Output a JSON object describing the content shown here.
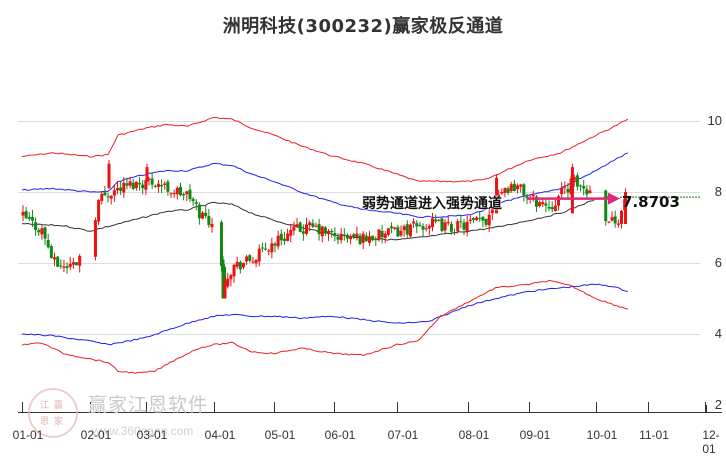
{
  "title": "洲明科技(300232)赢家极反通道",
  "annotation": "弱势通道进入强势通道",
  "last_price_label": "7.8703",
  "watermark": {
    "brand": "赢家江恩软件",
    "url": "www.360gann.com",
    "seal": [
      "江",
      "赢",
      "恩",
      "家"
    ]
  },
  "colors": {
    "up": "#ee1111",
    "down": "#118811",
    "outer": "#ee2222",
    "inner": "#2222ee",
    "mid": "#333333",
    "arrow": "#e0287a",
    "ref": "#117711",
    "grid": "#dddddd"
  },
  "chart_data": {
    "type": "candlestick",
    "title": "洲明科技(300232)赢家极反通道",
    "xlabel": "",
    "ylabel": "",
    "ylim": [
      2,
      10.5
    ],
    "yticks": [
      2,
      4,
      6,
      8,
      10
    ],
    "xticks": [
      "01-01",
      "02-01",
      "03-01",
      "04-01",
      "05-01",
      "06-01",
      "07-01",
      "08-01",
      "09-01",
      "10-01",
      "11-01",
      "12-01"
    ],
    "grid": true,
    "legend": null,
    "reference_line": {
      "value": 7.87,
      "label": "7.8703",
      "style": "dotted-green"
    },
    "annotation": {
      "text": "弱势通道进入强势通道",
      "arrow_to": 7.87
    },
    "series": [
      {
        "name": "upper-outer-band",
        "color": "#ee2222",
        "points": [
          [
            "01-01",
            9.0
          ],
          [
            "01-15",
            9.1
          ],
          [
            "02-01",
            9.0
          ],
          [
            "02-10",
            9.05
          ],
          [
            "02-15",
            9.6
          ],
          [
            "03-01",
            9.8
          ],
          [
            "03-10",
            9.9
          ],
          [
            "03-20",
            9.85
          ],
          [
            "04-01",
            10.1
          ],
          [
            "04-10",
            10.05
          ],
          [
            "04-20",
            9.8
          ],
          [
            "05-01",
            9.6
          ],
          [
            "05-15",
            9.3
          ],
          [
            "06-01",
            9.0
          ],
          [
            "06-15",
            8.8
          ],
          [
            "07-01",
            8.5
          ],
          [
            "07-10",
            8.3
          ],
          [
            "07-20",
            8.3
          ],
          [
            "08-01",
            8.3
          ],
          [
            "08-10",
            8.35
          ],
          [
            "08-20",
            8.6
          ],
          [
            "09-01",
            8.9
          ],
          [
            "09-15",
            9.1
          ],
          [
            "10-01",
            9.6
          ],
          [
            "10-10",
            9.8
          ],
          [
            "10-20",
            10.05
          ]
        ]
      },
      {
        "name": "upper-inner-band",
        "color": "#2222ee",
        "points": [
          [
            "01-01",
            8.05
          ],
          [
            "01-15",
            8.1
          ],
          [
            "02-01",
            8.0
          ],
          [
            "02-10",
            8.0
          ],
          [
            "02-15",
            8.3
          ],
          [
            "03-01",
            8.5
          ],
          [
            "03-10",
            8.6
          ],
          [
            "03-20",
            8.6
          ],
          [
            "04-01",
            8.8
          ],
          [
            "04-10",
            8.75
          ],
          [
            "04-20",
            8.5
          ],
          [
            "05-01",
            8.3
          ],
          [
            "05-15",
            8.0
          ],
          [
            "06-01",
            7.7
          ],
          [
            "06-15",
            7.5
          ],
          [
            "07-01",
            7.4
          ],
          [
            "07-10",
            7.3
          ],
          [
            "07-20",
            7.3
          ],
          [
            "08-01",
            7.35
          ],
          [
            "08-10",
            7.5
          ],
          [
            "08-20",
            7.75
          ],
          [
            "09-01",
            7.9
          ],
          [
            "09-15",
            8.1
          ],
          [
            "10-01",
            8.6
          ],
          [
            "10-10",
            8.85
          ],
          [
            "10-20",
            9.1
          ]
        ]
      },
      {
        "name": "middle-line",
        "color": "#333333",
        "points": [
          [
            "01-01",
            7.1
          ],
          [
            "01-20",
            7.05
          ],
          [
            "02-01",
            6.9
          ],
          [
            "02-15",
            7.1
          ],
          [
            "03-01",
            7.3
          ],
          [
            "03-10",
            7.45
          ],
          [
            "03-20",
            7.5
          ],
          [
            "04-01",
            7.7
          ],
          [
            "04-10",
            7.65
          ],
          [
            "04-20",
            7.4
          ],
          [
            "05-01",
            7.2
          ],
          [
            "05-15",
            7.0
          ],
          [
            "06-01",
            6.8
          ],
          [
            "06-15",
            6.7
          ],
          [
            "07-01",
            6.65
          ],
          [
            "07-15",
            6.75
          ],
          [
            "08-01",
            6.9
          ],
          [
            "08-15",
            7.0
          ],
          [
            "09-01",
            7.2
          ],
          [
            "09-15",
            7.4
          ],
          [
            "10-01",
            7.8
          ],
          [
            "10-10",
            7.9
          ]
        ]
      },
      {
        "name": "lower-inner-band",
        "color": "#2222ee",
        "points": [
          [
            "01-01",
            4.0
          ],
          [
            "01-15",
            3.95
          ],
          [
            "02-01",
            3.8
          ],
          [
            "02-10",
            3.7
          ],
          [
            "02-20",
            3.8
          ],
          [
            "03-01",
            3.9
          ],
          [
            "03-15",
            4.2
          ],
          [
            "03-25",
            4.4
          ],
          [
            "04-01",
            4.5
          ],
          [
            "04-10",
            4.55
          ],
          [
            "04-20",
            4.5
          ],
          [
            "05-01",
            4.5
          ],
          [
            "05-15",
            4.45
          ],
          [
            "06-01",
            4.5
          ],
          [
            "06-15",
            4.4
          ],
          [
            "07-01",
            4.3
          ],
          [
            "07-15",
            4.35
          ],
          [
            "08-01",
            4.8
          ],
          [
            "08-15",
            5.0
          ],
          [
            "09-01",
            5.2
          ],
          [
            "09-15",
            5.3
          ],
          [
            "10-01",
            5.4
          ],
          [
            "10-10",
            5.35
          ],
          [
            "10-20",
            5.2
          ]
        ]
      },
      {
        "name": "lower-outer-band",
        "color": "#ee2222",
        "points": [
          [
            "01-01",
            3.7
          ],
          [
            "01-10",
            3.75
          ],
          [
            "01-20",
            3.45
          ],
          [
            "02-01",
            3.3
          ],
          [
            "02-10",
            3.2
          ],
          [
            "02-15",
            2.95
          ],
          [
            "02-25",
            2.9
          ],
          [
            "03-05",
            2.95
          ],
          [
            "03-15",
            3.3
          ],
          [
            "03-25",
            3.6
          ],
          [
            "04-01",
            3.7
          ],
          [
            "04-10",
            3.75
          ],
          [
            "04-20",
            3.5
          ],
          [
            "05-01",
            3.45
          ],
          [
            "05-15",
            3.6
          ],
          [
            "06-01",
            3.45
          ],
          [
            "06-15",
            3.4
          ],
          [
            "07-01",
            3.7
          ],
          [
            "07-10",
            3.8
          ],
          [
            "07-20",
            4.5
          ],
          [
            "08-01",
            4.9
          ],
          [
            "08-15",
            5.3
          ],
          [
            "09-01",
            5.4
          ],
          [
            "09-10",
            5.5
          ],
          [
            "09-20",
            5.35
          ],
          [
            "10-01",
            5.0
          ],
          [
            "10-10",
            4.85
          ],
          [
            "10-20",
            4.7
          ]
        ]
      },
      {
        "name": "price-close",
        "points": [
          [
            "01-01",
            7.3
          ],
          [
            "01-10",
            6.9
          ],
          [
            "01-15",
            6.0
          ],
          [
            "01-20",
            5.9
          ],
          [
            "01-25",
            6.0
          ],
          [
            "02-01",
            6.8
          ],
          [
            "02-05",
            7.8
          ],
          [
            "02-10",
            8.0
          ],
          [
            "02-20",
            8.2
          ],
          [
            "03-01",
            8.3
          ],
          [
            "03-05",
            8.3
          ],
          [
            "03-10",
            8.1
          ],
          [
            "03-20",
            7.9
          ],
          [
            "03-25",
            7.4
          ],
          [
            "04-01",
            7.1
          ],
          [
            "04-05",
            5.5
          ],
          [
            "04-10",
            5.9
          ],
          [
            "04-20",
            6.1
          ],
          [
            "05-01",
            6.6
          ],
          [
            "05-10",
            6.9
          ],
          [
            "05-20",
            7.0
          ],
          [
            "06-01",
            6.75
          ],
          [
            "06-15",
            6.7
          ],
          [
            "06-25",
            6.8
          ],
          [
            "07-01",
            6.9
          ],
          [
            "07-15",
            7.1
          ],
          [
            "07-25",
            7.0
          ],
          [
            "08-01",
            7.1
          ],
          [
            "08-10",
            7.2
          ],
          [
            "08-15",
            8.0
          ],
          [
            "08-25",
            8.2
          ],
          [
            "09-01",
            7.8
          ],
          [
            "09-10",
            7.6
          ],
          [
            "09-20",
            8.3
          ],
          [
            "09-25",
            8.1
          ],
          [
            "10-01",
            7.9
          ],
          [
            "10-05",
            7.4
          ],
          [
            "10-10",
            7.2
          ],
          [
            "10-15",
            7.3
          ],
          [
            "10-18",
            7.87
          ]
        ]
      }
    ]
  }
}
